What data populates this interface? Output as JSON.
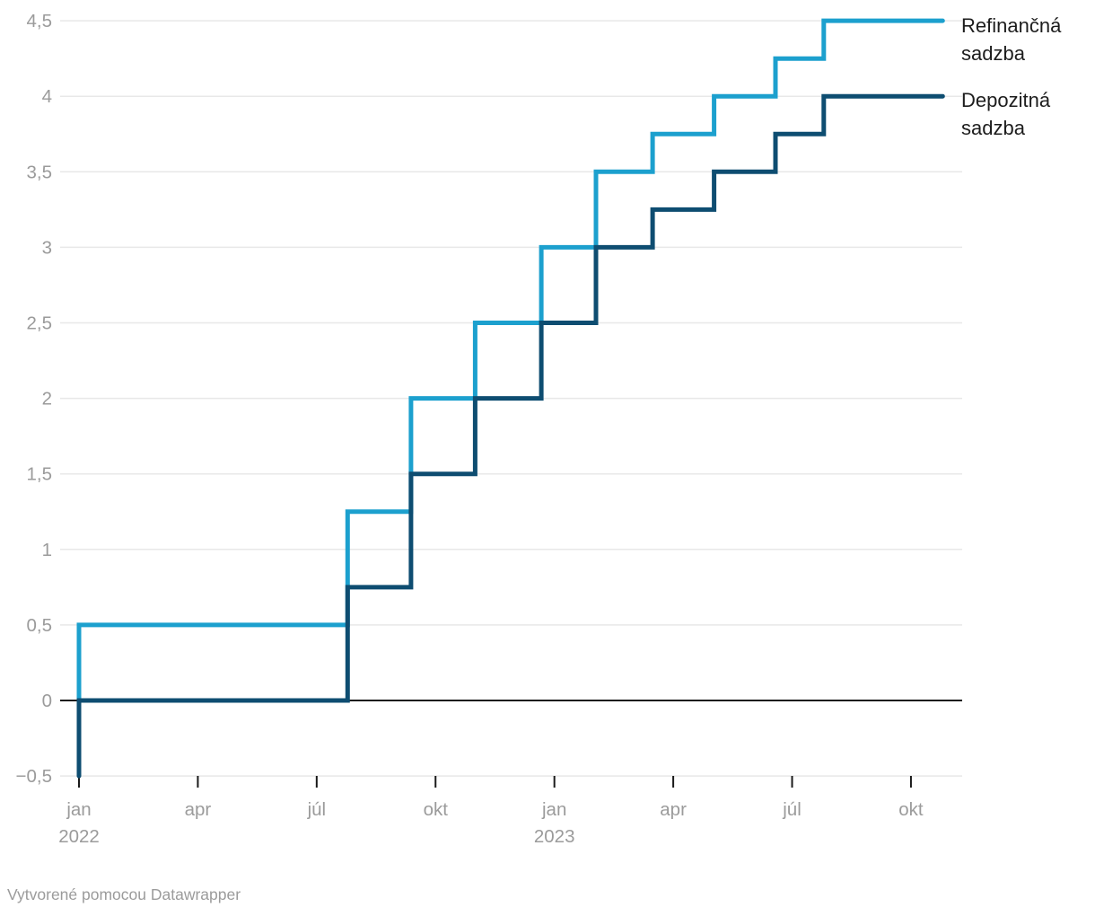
{
  "chart_data": {
    "type": "line",
    "subtype": "step",
    "title": "",
    "xlabel": "",
    "ylabel": "",
    "x_unit": "months since jan 2022",
    "ylim": [
      -0.5,
      4.5
    ],
    "xlim": [
      -0.48,
      22.3
    ],
    "grid": true,
    "legend_position": "right",
    "series": [
      {
        "name": "Refinančná sadzba",
        "color": "#1ca0ce",
        "points": [
          [
            0,
            0
          ],
          [
            0,
            0.5
          ],
          [
            6.78,
            0.5
          ],
          [
            6.78,
            1.25
          ],
          [
            8.38,
            1.25
          ],
          [
            8.38,
            2
          ],
          [
            10,
            2
          ],
          [
            10,
            2.5
          ],
          [
            11.67,
            2.5
          ],
          [
            11.67,
            3
          ],
          [
            13.05,
            3
          ],
          [
            13.05,
            3.5
          ],
          [
            14.48,
            3.5
          ],
          [
            14.48,
            3.75
          ],
          [
            16.03,
            3.75
          ],
          [
            16.03,
            4
          ],
          [
            17.58,
            4
          ],
          [
            17.58,
            4.25
          ],
          [
            18.8,
            4.25
          ],
          [
            18.8,
            4.5
          ],
          [
            21.8,
            4.5
          ]
        ]
      },
      {
        "name": "Depozitná sadzba",
        "color": "#0e4d71",
        "points": [
          [
            0,
            -0.5
          ],
          [
            0,
            0
          ],
          [
            6.78,
            0
          ],
          [
            6.78,
            0.75
          ],
          [
            8.38,
            0.75
          ],
          [
            8.38,
            1.5
          ],
          [
            10,
            1.5
          ],
          [
            10,
            2
          ],
          [
            11.67,
            2
          ],
          [
            11.67,
            2.5
          ],
          [
            13.05,
            2.5
          ],
          [
            13.05,
            3
          ],
          [
            14.48,
            3
          ],
          [
            14.48,
            3.25
          ],
          [
            16.03,
            3.25
          ],
          [
            16.03,
            3.5
          ],
          [
            17.58,
            3.5
          ],
          [
            17.58,
            3.75
          ],
          [
            18.8,
            3.75
          ],
          [
            18.8,
            4
          ],
          [
            21.8,
            4
          ]
        ]
      }
    ],
    "x_ticks": [
      {
        "m": 0,
        "label": "jan",
        "sublabel": "2022"
      },
      {
        "m": 3,
        "label": "apr"
      },
      {
        "m": 6,
        "label": "júl"
      },
      {
        "m": 9,
        "label": "okt"
      },
      {
        "m": 12,
        "label": "jan",
        "sublabel": "2023"
      },
      {
        "m": 15,
        "label": "apr"
      },
      {
        "m": 18,
        "label": "júl"
      },
      {
        "m": 21,
        "label": "okt"
      }
    ],
    "y_ticks": [
      {
        "v": -0.5,
        "label": "−0,5"
      },
      {
        "v": 0,
        "label": "0"
      },
      {
        "v": 0.5,
        "label": "0,5"
      },
      {
        "v": 1,
        "label": "1"
      },
      {
        "v": 1.5,
        "label": "1,5"
      },
      {
        "v": 2,
        "label": "2"
      },
      {
        "v": 2.5,
        "label": "2,5"
      },
      {
        "v": 3,
        "label": "3"
      },
      {
        "v": 3.5,
        "label": "3,5"
      },
      {
        "v": 4,
        "label": "4"
      },
      {
        "v": 4.5,
        "label": "4,5"
      }
    ]
  },
  "colors": {
    "refinancna_line": "#1ca0ce",
    "depozitna_line": "#0e4d71",
    "gridline": "#e8e8e8",
    "zero_axis": "#1a1a1a",
    "tick_mark": "#1a1a1a",
    "axis_label_text": "#9b9b9b",
    "legend_text": "#1d1d1d",
    "footer_text": "#9b9b9b",
    "background": "#ffffff"
  },
  "footer": {
    "credit": "Vytvorené pomocou Datawrapper"
  }
}
